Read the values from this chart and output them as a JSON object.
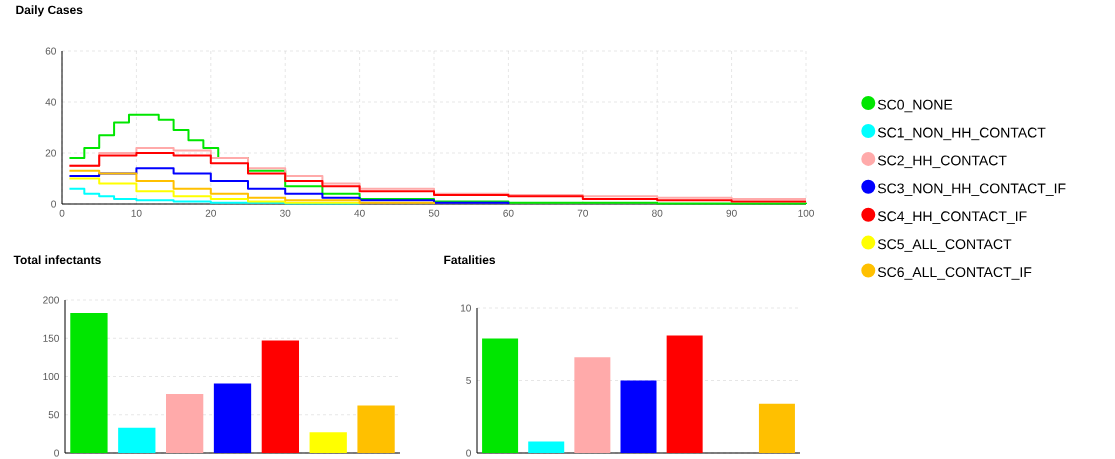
{
  "chart_data": [
    {
      "type": "step",
      "title": "Daily Cases",
      "xlim": [
        0,
        100
      ],
      "ylim": [
        0,
        60
      ],
      "xticks": [
        0,
        10,
        20,
        30,
        40,
        50,
        60,
        70,
        80,
        90,
        100
      ],
      "yticks": [
        0,
        20,
        40,
        60
      ],
      "grid": true,
      "legend": "right",
      "series": [
        {
          "name": "SC0_NONE",
          "color": "#00e600",
          "x": [
            1,
            3,
            5,
            7,
            9,
            11,
            13,
            15,
            17,
            19,
            21,
            25,
            30,
            35,
            40,
            50,
            60,
            80,
            100
          ],
          "values": [
            18,
            22,
            27,
            32,
            35,
            35,
            33,
            29,
            25,
            22,
            18,
            13,
            7,
            4,
            2,
            1,
            0.5,
            0.2,
            0
          ]
        },
        {
          "name": "SC1_NON_HH_CONTACT",
          "color": "#00ffff",
          "x": [
            1,
            3,
            5,
            7,
            10,
            15,
            20,
            30,
            40
          ],
          "values": [
            6,
            4,
            3,
            2,
            1.5,
            1,
            0.5,
            0.2,
            0
          ]
        },
        {
          "name": "SC2_HH_CONTACT",
          "color": "#ffaaaa",
          "x": [
            1,
            5,
            10,
            15,
            20,
            25,
            30,
            35,
            40,
            50,
            60,
            70,
            80,
            90,
            100
          ],
          "values": [
            15,
            20,
            22,
            21,
            18,
            14,
            11,
            8,
            6,
            4,
            3.5,
            3,
            2.5,
            2,
            2
          ]
        },
        {
          "name": "SC3_NON_HH_CONTACT_IF",
          "color": "#0000ff",
          "x": [
            1,
            5,
            10,
            15,
            20,
            25,
            30,
            35,
            40,
            50,
            60
          ],
          "values": [
            11,
            12,
            14,
            12,
            9,
            6,
            4,
            2.5,
            1.5,
            0.5,
            0
          ]
        },
        {
          "name": "SC4_HH_CONTACT_IF",
          "color": "#ff0000",
          "x": [
            1,
            5,
            10,
            15,
            20,
            25,
            30,
            35,
            40,
            50,
            60,
            70,
            80,
            90,
            100
          ],
          "values": [
            15,
            19,
            20,
            19,
            16,
            12,
            9,
            7,
            5,
            3.5,
            3,
            2,
            1.5,
            1,
            1
          ]
        },
        {
          "name": "SC5_ALL_CONTACT",
          "color": "#ffff00",
          "x": [
            1,
            5,
            10,
            15,
            20,
            25,
            30,
            40
          ],
          "values": [
            10,
            8,
            5,
            3,
            2,
            1,
            0.5,
            0
          ]
        },
        {
          "name": "SC6_ALL_CONTACT_IF",
          "color": "#ffc000",
          "x": [
            1,
            5,
            10,
            15,
            20,
            25,
            30,
            40,
            50
          ],
          "values": [
            13,
            12,
            9,
            6,
            4,
            2.5,
            1.5,
            0.5,
            0
          ]
        }
      ]
    },
    {
      "type": "bar",
      "title": "Total infectants",
      "categories": [
        null,
        null,
        null,
        null,
        null,
        null,
        null
      ],
      "values": [
        183,
        33,
        77,
        91,
        147,
        27,
        62
      ],
      "colors": [
        "#00e600",
        "#00ffff",
        "#ffaaaa",
        "#0000ff",
        "#ff0000",
        "#ffff00",
        "#ffc000"
      ],
      "ylim": [
        0,
        200
      ],
      "yticks": [
        0,
        50,
        100,
        150,
        200
      ],
      "grid": "y"
    },
    {
      "type": "bar",
      "title": "Fatalities",
      "categories": [
        null,
        null,
        null,
        null,
        null,
        null,
        null
      ],
      "values": [
        7.9,
        0.8,
        6.6,
        5.0,
        8.1,
        0,
        3.4
      ],
      "colors": [
        "#00e600",
        "#00ffff",
        "#ffaaaa",
        "#0000ff",
        "#ff0000",
        "#ffff00",
        "#ffc000"
      ],
      "ylim": [
        0,
        10
      ],
      "yticks": [
        0,
        5,
        10
      ],
      "grid": "y"
    }
  ]
}
